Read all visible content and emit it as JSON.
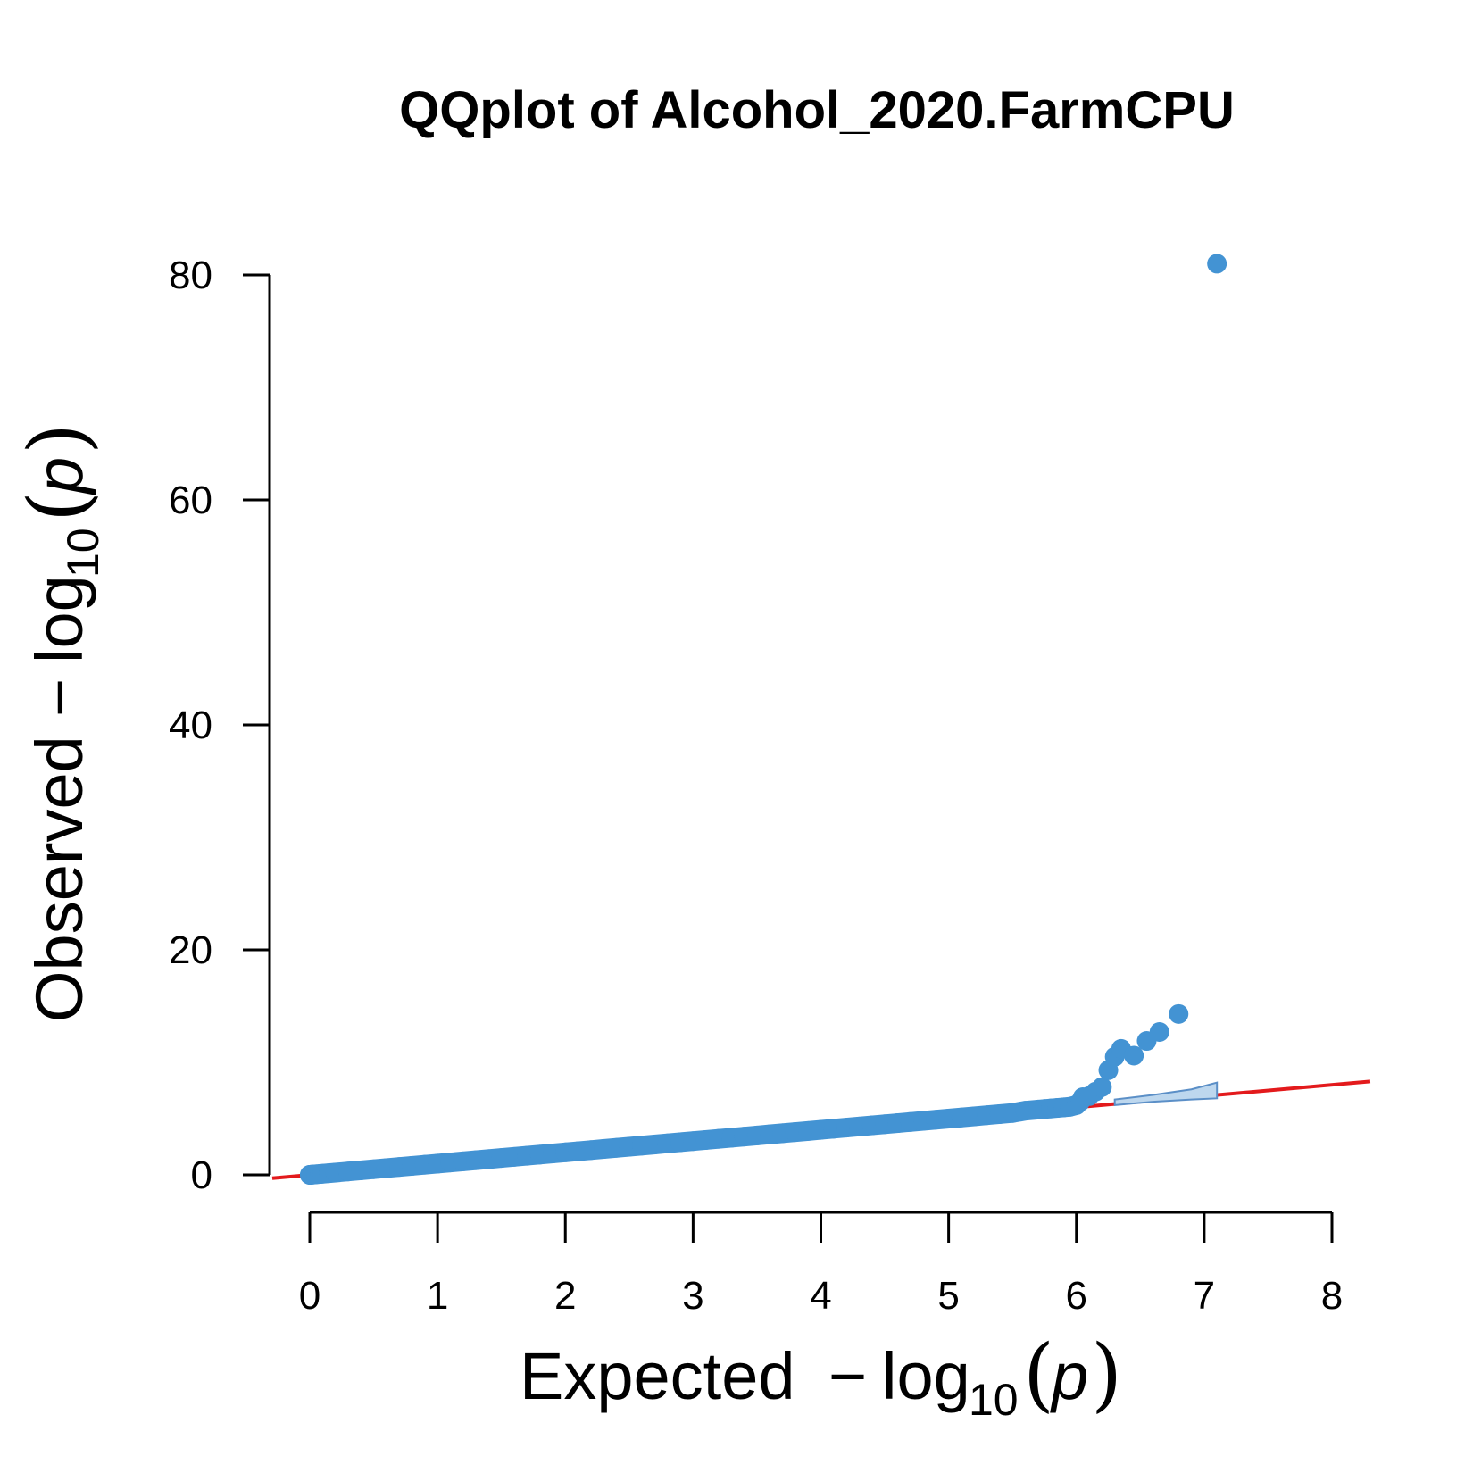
{
  "chart_data": {
    "type": "scatter",
    "title": "QQplot of Alcohol_2020.FarmCPU",
    "xlabel": {
      "prefix": "Expected",
      "minus": "−",
      "log": "log",
      "base": "10",
      "open_paren": "(",
      "var": "p",
      "close_paren": ")"
    },
    "ylabel": {
      "prefix": "Observed",
      "minus": "−",
      "log": "log",
      "base": "10",
      "open_paren": "(",
      "var": "p",
      "close_paren": ")"
    },
    "xlim": [
      0,
      8
    ],
    "ylim": [
      0,
      80
    ],
    "xticks": [
      "0",
      "1",
      "2",
      "3",
      "4",
      "5",
      "6",
      "7",
      "8"
    ],
    "yticks": [
      "0",
      "20",
      "40",
      "60",
      "80"
    ],
    "point_color": "#4393d3",
    "reference_line_color": "#e31a1c",
    "confidence_band_color": "#bdd7ee",
    "confidence_band_edge": "#5b8fc7",
    "reference_line": {
      "from": [
        -0.3,
        -0.3
      ],
      "to": [
        8.3,
        8.3
      ]
    },
    "confidence_band": {
      "x": [
        6.3,
        6.6,
        6.9,
        7.1
      ],
      "upper": [
        6.7,
        7.1,
        7.6,
        8.2
      ],
      "lower": [
        6.2,
        6.5,
        6.7,
        6.8
      ]
    },
    "points": {
      "x": [
        0.0,
        0.005,
        0.01,
        0.02,
        0.03,
        0.05,
        0.08,
        0.1,
        0.15,
        0.2,
        0.3,
        0.4,
        0.5,
        0.6,
        0.7,
        0.8,
        0.9,
        1.0,
        1.1,
        1.2,
        1.3,
        1.4,
        1.5,
        1.6,
        1.7,
        1.8,
        1.9,
        2.0,
        2.1,
        2.2,
        2.3,
        2.4,
        2.5,
        2.6,
        2.7,
        2.8,
        2.9,
        3.0,
        3.1,
        3.2,
        3.3,
        3.4,
        3.5,
        3.6,
        3.7,
        3.8,
        3.9,
        4.0,
        4.1,
        4.2,
        4.3,
        4.4,
        4.5,
        4.6,
        4.7,
        4.8,
        4.9,
        5.0,
        5.1,
        5.2,
        5.3,
        5.4,
        5.5,
        5.6,
        5.7,
        5.75,
        5.8,
        5.85,
        5.9,
        5.95,
        6.0,
        6.03,
        6.05,
        6.1,
        6.15,
        6.2,
        6.25,
        6.3,
        6.35,
        6.45,
        6.55,
        6.65,
        6.8,
        7.1
      ],
      "y": [
        0.0,
        0.005,
        0.01,
        0.02,
        0.03,
        0.05,
        0.08,
        0.1,
        0.15,
        0.2,
        0.3,
        0.4,
        0.5,
        0.6,
        0.7,
        0.8,
        0.9,
        1.0,
        1.1,
        1.2,
        1.3,
        1.4,
        1.5,
        1.6,
        1.7,
        1.8,
        1.9,
        2.0,
        2.1,
        2.2,
        2.3,
        2.4,
        2.5,
        2.6,
        2.7,
        2.8,
        2.9,
        3.0,
        3.1,
        3.2,
        3.3,
        3.4,
        3.5,
        3.6,
        3.7,
        3.8,
        3.9,
        4.0,
        4.1,
        4.2,
        4.3,
        4.4,
        4.5,
        4.6,
        4.7,
        4.8,
        4.9,
        5.0,
        5.1,
        5.2,
        5.3,
        5.4,
        5.5,
        5.7,
        5.8,
        5.85,
        5.9,
        5.95,
        6.0,
        6.05,
        6.2,
        6.5,
        6.9,
        7.0,
        7.4,
        7.8,
        9.3,
        10.5,
        11.2,
        10.6,
        11.9,
        12.7,
        14.3,
        81.0
      ]
    }
  }
}
